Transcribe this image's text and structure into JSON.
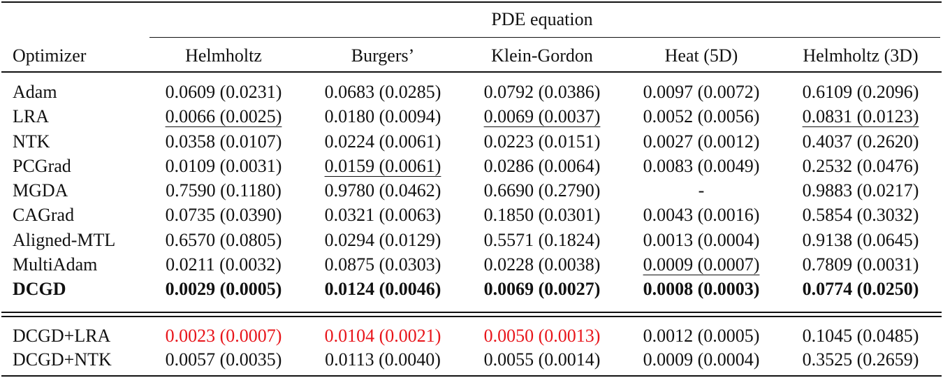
{
  "table": {
    "header": {
      "title": "PDE equation"
    },
    "columns": [
      "Optimizer",
      "Helmholtz",
      "Burgers’",
      "Klein-Gordon",
      "Heat (5D)",
      "Helmholtz (3D)"
    ],
    "rows": [
      {
        "cells": [
          "Adam",
          "0.0609 (0.0231)",
          "0.0683 (0.0285)",
          "0.0792 (0.0386)",
          "0.0097 (0.0072)",
          "0.6109 (0.2096)"
        ]
      },
      {
        "cells": [
          "LRA",
          "0.0066 (0.0025)",
          "0.0180 (0.0094)",
          "0.0069 (0.0037)",
          "0.0052 (0.0056)",
          "0.0831 (0.0123)"
        ],
        "underline": [
          1,
          3,
          5
        ]
      },
      {
        "cells": [
          "NTK",
          "0.0358 (0.0107)",
          "0.0224 (0.0061)",
          "0.0223 (0.0151)",
          "0.0027 (0.0012)",
          "0.4037 (0.2620)"
        ]
      },
      {
        "cells": [
          "PCGrad",
          "0.0109 (0.0031)",
          "0.0159 (0.0061)",
          "0.0286 (0.0064)",
          "0.0083 (0.0049)",
          "0.2532 (0.0476)"
        ],
        "underline": [
          2
        ]
      },
      {
        "cells": [
          "MGDA",
          "0.7590 (0.1180)",
          "0.9780 (0.0462)",
          "0.6690 (0.2790)",
          "-",
          "0.9883 (0.0217)"
        ]
      },
      {
        "cells": [
          "CAGrad",
          "0.0735 (0.0390)",
          "0.0321 (0.0063)",
          "0.1850 (0.0301)",
          "0.0043 (0.0016)",
          "0.5854 (0.3032)"
        ]
      },
      {
        "cells": [
          "Aligned-MTL",
          "0.6570 (0.0805)",
          "0.0294 (0.0129)",
          "0.5571 (0.1824)",
          "0.0013 (0.0004)",
          "0.9138 (0.0645)"
        ]
      },
      {
        "cells": [
          "MultiAdam",
          "0.0211 (0.0032)",
          "0.0875 (0.0303)",
          "0.0228 (0.0038)",
          "0.0009 (0.0007)",
          "0.7809 (0.0031)"
        ],
        "underline": [
          4
        ]
      },
      {
        "cells": [
          "DCGD",
          "0.0029 (0.0005)",
          "0.0124 (0.0046)",
          "0.0069 (0.0027)",
          "0.0008 (0.0003)",
          "0.0774 (0.0250)"
        ],
        "bold": true
      },
      {
        "cells": [
          "DCGD+LRA",
          "0.0023 (0.0007)",
          "0.0104 (0.0021)",
          "0.0050 (0.0013)",
          "0.0012 (0.0005)",
          "0.1045 (0.0485)"
        ],
        "red": [
          1,
          2,
          3
        ],
        "color": "#e8141a"
      },
      {
        "cells": [
          "DCGD+NTK",
          "0.0057 (0.0035)",
          "0.0113 (0.0040)",
          "0.0055 (0.0014)",
          "0.0009 (0.0004)",
          "0.3525 (0.2659)"
        ]
      }
    ]
  }
}
